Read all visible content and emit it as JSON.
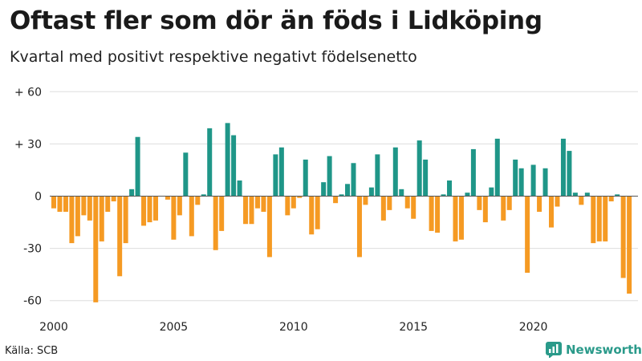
{
  "title": "Oftast fler som dör än föds i Lidköping",
  "subtitle": "Kvartal med positivt respektive negativt födelsenetto",
  "source": "Källa: SCB",
  "brand": "Newsworthy",
  "colors": {
    "positive": "#1f9688",
    "negative": "#f59a23",
    "grid": "#dddddd",
    "zero": "#555555",
    "brand": "#2a9a8a"
  },
  "chart_data": {
    "type": "bar",
    "title": "Oftast fler som dör än föds i Lidköping",
    "subtitle": "Kvartal med positivt respektive negativt födelsenetto",
    "ylim": [
      -65,
      65
    ],
    "yticks": [
      60,
      30,
      0,
      -30,
      -60
    ],
    "ytick_labels": [
      "+ 60",
      "+ 30",
      "0",
      "-30",
      "-60"
    ],
    "xtick_years": [
      2000,
      2005,
      2010,
      2015,
      2020
    ],
    "xtick_labels": [
      "2000",
      "2005",
      "2010",
      "2015",
      "2020"
    ],
    "start_year": 2000,
    "values": [
      -7,
      -9,
      -9,
      -27,
      -23,
      -11,
      -14,
      -61,
      -26,
      -9,
      -3,
      -46,
      -27,
      4,
      34,
      -17,
      -15,
      -14,
      0,
      -2,
      -25,
      -11,
      25,
      -23,
      -5,
      1,
      39,
      -31,
      -20,
      42,
      35,
      9,
      -16,
      -16,
      -7,
      -9,
      -35,
      24,
      28,
      -11,
      -7,
      -1,
      21,
      -22,
      -19,
      8,
      23,
      -4,
      1,
      7,
      19,
      -35,
      -5,
      5,
      24,
      -14,
      -8,
      28,
      4,
      -7,
      -13,
      32,
      21,
      -20,
      -21,
      1,
      9,
      -26,
      -25,
      2,
      27,
      -8,
      -15,
      5,
      33,
      -14,
      -8,
      21,
      16,
      -44,
      18,
      -9,
      16,
      -18,
      -6,
      33,
      26,
      2,
      -5,
      2,
      -27,
      -26,
      -26,
      -3,
      1,
      -47,
      -56
    ]
  }
}
